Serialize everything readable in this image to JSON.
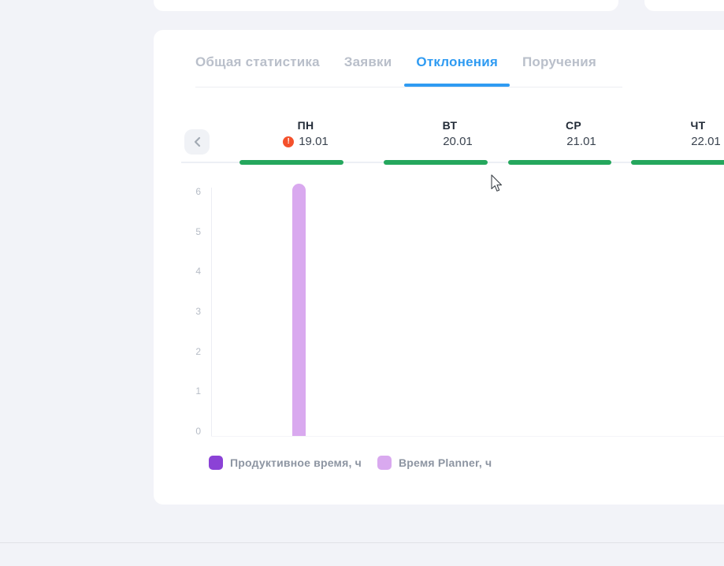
{
  "colors": {
    "bg": "#f2f3f8",
    "card": "#ffffff",
    "tab_inactive": "#b9bfca",
    "tab_active": "#2f9bf2",
    "divider": "#eceef2",
    "day_name": "#222b37",
    "day_date": "#3a434f",
    "warning": "#f4512c",
    "day_bar_green": "#25a75d",
    "track": "#edeff5",
    "tick": "#b6bcc6",
    "axis": "#ecedf3",
    "bar_planner": "#d9a9ef",
    "legend_productive": "#8b42d6",
    "legend_text": "#8d95a2",
    "chevron_bg": "#f0f2f6",
    "chevron": "#a3aab4",
    "page_divider": "#e1e2e6"
  },
  "tabs": {
    "items": [
      {
        "label": "Общая статистика",
        "active": false
      },
      {
        "label": "Заявки",
        "active": false
      },
      {
        "label": "Отклонения",
        "active": true
      },
      {
        "label": "Поручения",
        "active": false
      }
    ]
  },
  "week_nav": {
    "prev_button": "chevron-left",
    "warning_glyph": "!",
    "days": [
      {
        "name": "ПН",
        "date": "19.01",
        "warning": true
      },
      {
        "name": "ВТ",
        "date": "20.01",
        "warning": false
      },
      {
        "name": "СР",
        "date": "21.01",
        "warning": false
      },
      {
        "name": "ЧТ",
        "date": "22.01",
        "warning": false
      }
    ]
  },
  "chart_data": {
    "type": "bar",
    "title": "",
    "xlabel": "",
    "ylabel": "",
    "categories": [
      "ПН 19.01",
      "ВТ 20.01",
      "СР 21.01",
      "ЧТ 22.01"
    ],
    "series": [
      {
        "name": "Продуктивное время, ч",
        "color": "#8b42d6",
        "values": [
          0,
          0,
          0,
          0
        ]
      },
      {
        "name": "Время Planner, ч",
        "color": "#d9a9ef",
        "values": [
          6.2,
          0,
          0,
          0
        ]
      }
    ],
    "ylim": [
      0,
      6
    ],
    "yticks": [
      0,
      1,
      2,
      3,
      4,
      5,
      6
    ],
    "grid": false,
    "legend_position": "bottom"
  },
  "legend": {
    "items": [
      {
        "label": "Продуктивное время, ч",
        "color": "#8b42d6"
      },
      {
        "label": "Время Planner, ч",
        "color": "#d9a9ef"
      }
    ]
  }
}
